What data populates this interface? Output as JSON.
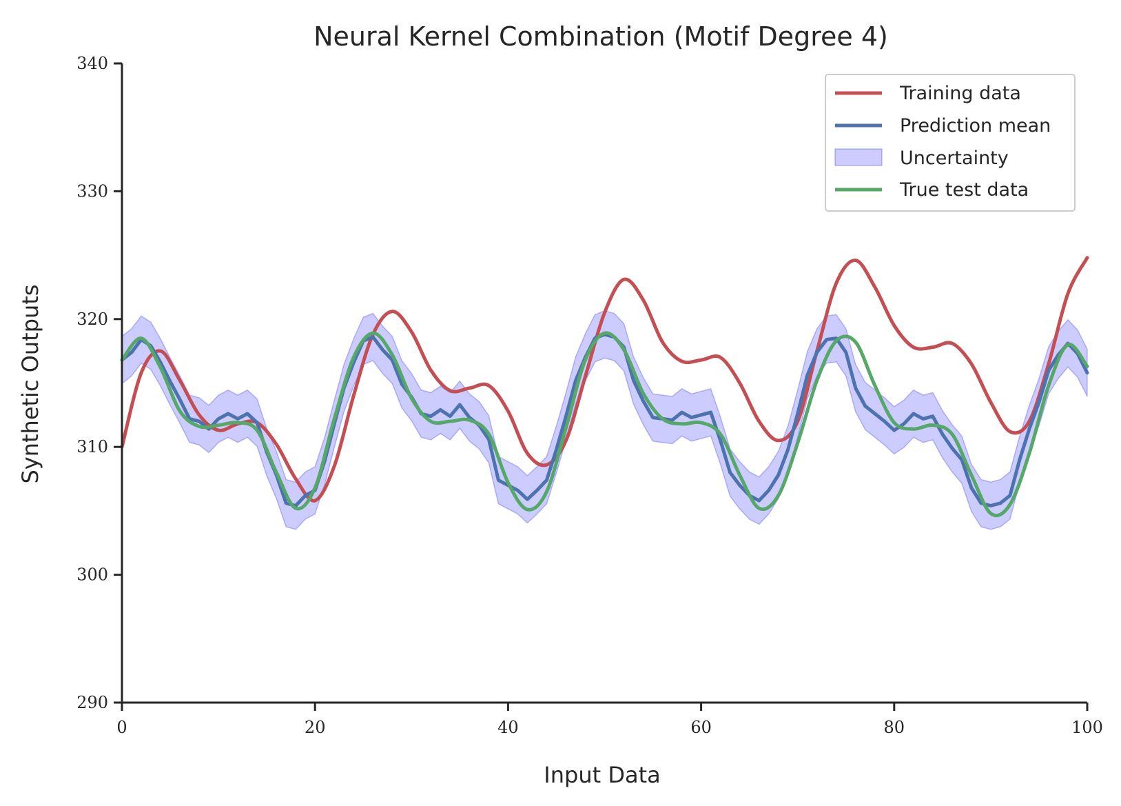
{
  "chart_data": {
    "type": "line",
    "title": "Neural Kernel Combination (Motif Degree 4)",
    "xlabel": "Input Data",
    "ylabel": "Synthetic Outputs",
    "xlim": [
      0,
      100
    ],
    "ylim": [
      290,
      340
    ],
    "xticks": [
      0,
      20,
      40,
      60,
      80,
      100
    ],
    "yticks": [
      290,
      300,
      310,
      320,
      330,
      340
    ],
    "grid": false,
    "legend_position": "top-right",
    "series": [
      {
        "name": "Training data",
        "kind": "line",
        "color": "#c44e52",
        "x": [
          0,
          2,
          4,
          6,
          8,
          10,
          12,
          14,
          16,
          18,
          20,
          22,
          24,
          26,
          28,
          30,
          32,
          34,
          36,
          38,
          40,
          42,
          44,
          46,
          48,
          50,
          52,
          54,
          56,
          58,
          60,
          62,
          64,
          66,
          68,
          70,
          72,
          74,
          76,
          78,
          80,
          82,
          84,
          86,
          88,
          90,
          92,
          94,
          96,
          98,
          100
        ],
        "y": [
          310.0,
          315.8,
          317.5,
          315.2,
          312.5,
          311.3,
          311.8,
          311.9,
          310.2,
          307.5,
          305.8,
          308.5,
          314.0,
          318.8,
          320.6,
          319.0,
          316.0,
          314.4,
          314.6,
          314.8,
          312.8,
          309.5,
          308.6,
          310.5,
          315.5,
          320.5,
          323.1,
          321.5,
          318.2,
          316.7,
          316.8,
          317.0,
          315.0,
          312.0,
          310.5,
          312.0,
          317.5,
          322.8,
          324.6,
          322.5,
          319.5,
          317.8,
          317.8,
          318.1,
          316.5,
          313.5,
          311.2,
          312.0,
          316.5,
          322.0,
          324.8
        ]
      },
      {
        "name": "Prediction mean",
        "kind": "line",
        "color": "#4c72b0",
        "x": [
          0,
          1,
          2,
          3,
          4,
          5,
          6,
          7,
          8,
          9,
          10,
          11,
          12,
          13,
          14,
          15,
          16,
          17,
          18,
          19,
          20,
          21,
          22,
          23,
          24,
          25,
          26,
          27,
          28,
          29,
          30,
          31,
          32,
          33,
          34,
          35,
          36,
          37,
          38,
          39,
          40,
          41,
          42,
          43,
          44,
          45,
          46,
          47,
          48,
          49,
          50,
          51,
          52,
          53,
          54,
          55,
          56,
          57,
          58,
          59,
          60,
          61,
          62,
          63,
          64,
          65,
          66,
          67,
          68,
          69,
          70,
          71,
          72,
          73,
          74,
          75,
          76,
          77,
          78,
          79,
          80,
          81,
          82,
          83,
          84,
          85,
          86,
          87,
          88,
          89,
          90,
          91,
          92,
          93,
          94,
          95,
          96,
          97,
          98,
          99,
          100
        ],
        "y": [
          316.8,
          317.4,
          318.4,
          317.9,
          316.6,
          315.1,
          313.7,
          312.2,
          312.0,
          311.4,
          312.2,
          312.6,
          312.2,
          312.6,
          311.9,
          309.6,
          307.8,
          305.6,
          305.4,
          306.2,
          306.6,
          308.9,
          311.8,
          314.6,
          316.6,
          318.3,
          318.6,
          317.6,
          316.8,
          314.9,
          313.9,
          312.6,
          312.4,
          312.9,
          312.4,
          313.3,
          312.3,
          311.7,
          310.6,
          307.4,
          307.0,
          306.6,
          305.9,
          306.6,
          307.4,
          309.8,
          312.4,
          315.2,
          317.0,
          318.5,
          318.8,
          318.6,
          317.8,
          315.2,
          313.6,
          312.3,
          312.2,
          312.1,
          312.7,
          312.3,
          312.5,
          312.7,
          310.5,
          308.0,
          307.0,
          306.2,
          305.8,
          306.6,
          307.8,
          309.8,
          312.6,
          315.6,
          317.4,
          318.4,
          318.5,
          317.4,
          314.6,
          313.2,
          312.6,
          312.0,
          311.3,
          311.8,
          312.6,
          312.2,
          312.4,
          311.0,
          309.9,
          309.0,
          306.8,
          305.6,
          305.4,
          305.6,
          306.2,
          309.0,
          311.4,
          313.5,
          316.0,
          317.2,
          318.1,
          317.3,
          315.8
        ]
      },
      {
        "name": "Uncertainty",
        "kind": "band",
        "color": "#0000ff",
        "half_width": 1.85
      },
      {
        "name": "True test data",
        "kind": "line",
        "color": "#55a868",
        "x": [
          0,
          2,
          4,
          6,
          8,
          10,
          12,
          14,
          16,
          18,
          20,
          22,
          24,
          26,
          28,
          30,
          32,
          34,
          36,
          38,
          40,
          42,
          44,
          46,
          48,
          50,
          52,
          54,
          56,
          58,
          60,
          62,
          64,
          66,
          68,
          70,
          72,
          74,
          76,
          78,
          80,
          82,
          84,
          86,
          88,
          90,
          92,
          94,
          96,
          98,
          100
        ],
        "y": [
          316.8,
          318.5,
          316.2,
          312.8,
          311.6,
          311.7,
          311.9,
          311.3,
          308.0,
          305.2,
          306.8,
          312.2,
          317.0,
          318.9,
          317.2,
          313.8,
          312.0,
          312.0,
          312.1,
          311.0,
          307.2,
          305.1,
          306.5,
          311.5,
          316.8,
          318.9,
          317.6,
          314.2,
          312.2,
          311.8,
          311.9,
          311.0,
          307.8,
          305.2,
          306.2,
          310.3,
          315.2,
          318.3,
          318.2,
          314.8,
          311.9,
          311.4,
          311.7,
          311.0,
          307.8,
          304.8,
          305.5,
          309.5,
          314.8,
          318.0,
          316.3
        ]
      }
    ]
  }
}
